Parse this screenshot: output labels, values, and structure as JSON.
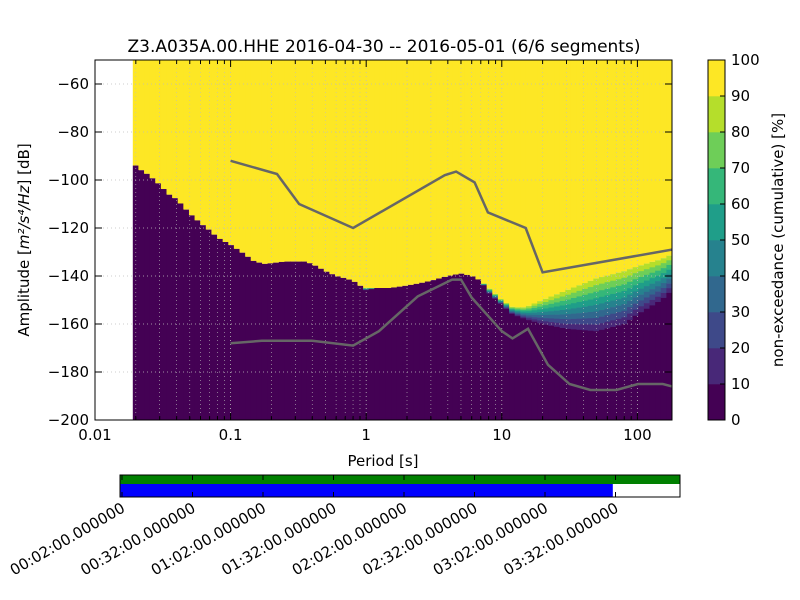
{
  "chart_data": {
    "type": "heatmap",
    "title": "Z3.A035A.00.HHE   2016-04-30 -- 2016-05-01  (6/6 segments)",
    "xlabel": "Period [s]",
    "ylabel_prefix": "Amplitude [",
    "ylabel_math": "m²/s⁴/Hz",
    "ylabel_suffix": "] [dB]",
    "x_scale": "log",
    "xlim": [
      0.01,
      180
    ],
    "ylim": [
      -200,
      -50
    ],
    "grid": true,
    "x_ticks": [
      {
        "value": 0.01,
        "label": "0.01"
      },
      {
        "value": 0.1,
        "label": "0.1"
      },
      {
        "value": 1,
        "label": "1"
      },
      {
        "value": 10,
        "label": "10"
      },
      {
        "value": 100,
        "label": "100"
      }
    ],
    "y_ticks": [
      {
        "value": -60,
        "label": "−60"
      },
      {
        "value": -80,
        "label": "−80"
      },
      {
        "value": -100,
        "label": "−100"
      },
      {
        "value": -120,
        "label": "−120"
      },
      {
        "value": -140,
        "label": "−140"
      },
      {
        "value": -160,
        "label": "−160"
      },
      {
        "value": -180,
        "label": "−180"
      },
      {
        "value": -200,
        "label": "−200"
      }
    ],
    "colorbar": {
      "label": "non-exceedance (cumulative) [%]",
      "range": [
        0,
        100
      ],
      "ticks": [
        {
          "value": 0,
          "label": "0"
        },
        {
          "value": 10,
          "label": "10"
        },
        {
          "value": 20,
          "label": "20"
        },
        {
          "value": 30,
          "label": "30"
        },
        {
          "value": 40,
          "label": "40"
        },
        {
          "value": 50,
          "label": "50"
        },
        {
          "value": 60,
          "label": "60"
        },
        {
          "value": 70,
          "label": "70"
        },
        {
          "value": 80,
          "label": "80"
        },
        {
          "value": 90,
          "label": "90"
        },
        {
          "value": 100,
          "label": "100"
        }
      ],
      "colors": [
        "#440154",
        "#482878",
        "#3e4989",
        "#31688e",
        "#26828e",
        "#1f9e89",
        "#35b779",
        "#6ece58",
        "#b5de2b",
        "#fde725"
      ]
    },
    "data_start_period": 0.019,
    "low_percentile_boundary": [
      [
        0.019,
        -93
      ],
      [
        0.022,
        -96
      ],
      [
        0.025,
        -98
      ],
      [
        0.03,
        -102
      ],
      [
        0.035,
        -106
      ],
      [
        0.04,
        -108
      ],
      [
        0.05,
        -114
      ],
      [
        0.06,
        -118
      ],
      [
        0.07,
        -121
      ],
      [
        0.08,
        -124
      ],
      [
        0.1,
        -127
      ],
      [
        0.12,
        -130
      ],
      [
        0.15,
        -134
      ],
      [
        0.18,
        -135
      ],
      [
        0.25,
        -134
      ],
      [
        0.3,
        -134
      ],
      [
        0.35,
        -134
      ],
      [
        0.4,
        -135
      ],
      [
        0.5,
        -138
      ],
      [
        0.6,
        -140
      ],
      [
        0.7,
        -141
      ],
      [
        0.8,
        -142
      ],
      [
        0.9,
        -144
      ],
      [
        1.0,
        -146
      ],
      [
        1.2,
        -145
      ],
      [
        1.5,
        -145
      ],
      [
        2,
        -144
      ],
      [
        2.5,
        -143
      ],
      [
        3,
        -142
      ],
      [
        4,
        -140
      ],
      [
        5,
        -139
      ],
      [
        6,
        -140
      ],
      [
        7,
        -142
      ],
      [
        8,
        -147
      ],
      [
        10,
        -152
      ],
      [
        12,
        -156
      ],
      [
        15,
        -158
      ],
      [
        20,
        -160
      ],
      [
        30,
        -162
      ],
      [
        50,
        -163
      ],
      [
        80,
        -160
      ],
      [
        100,
        -156
      ],
      [
        150,
        -150
      ],
      [
        180,
        -146
      ]
    ],
    "high_percentile_boundary": [
      [
        0.019,
        -93
      ],
      [
        0.022,
        -96
      ],
      [
        0.025,
        -98
      ],
      [
        0.03,
        -102
      ],
      [
        0.035,
        -106
      ],
      [
        0.04,
        -108
      ],
      [
        0.05,
        -114
      ],
      [
        0.06,
        -118
      ],
      [
        0.07,
        -121
      ],
      [
        0.08,
        -124
      ],
      [
        0.1,
        -127
      ],
      [
        0.12,
        -130
      ],
      [
        0.15,
        -134
      ],
      [
        0.18,
        -135
      ],
      [
        0.25,
        -134
      ],
      [
        0.3,
        -134
      ],
      [
        0.35,
        -134
      ],
      [
        0.4,
        -135
      ],
      [
        0.5,
        -138
      ],
      [
        0.6,
        -140
      ],
      [
        0.7,
        -141
      ],
      [
        0.8,
        -142
      ],
      [
        0.9,
        -144
      ],
      [
        1.0,
        -145
      ],
      [
        1.2,
        -145
      ],
      [
        1.5,
        -145
      ],
      [
        2,
        -144
      ],
      [
        2.5,
        -143
      ],
      [
        3,
        -142
      ],
      [
        4,
        -140
      ],
      [
        5,
        -139
      ],
      [
        6,
        -140
      ],
      [
        7,
        -142
      ],
      [
        8,
        -145
      ],
      [
        10,
        -150
      ],
      [
        12,
        -153
      ],
      [
        15,
        -153
      ],
      [
        20,
        -150
      ],
      [
        30,
        -146
      ],
      [
        50,
        -141
      ],
      [
        80,
        -138
      ],
      [
        100,
        -136
      ],
      [
        150,
        -133
      ],
      [
        180,
        -131
      ]
    ],
    "nhnm": [
      [
        0.1,
        -92
      ],
      [
        0.22,
        -97.5
      ],
      [
        0.32,
        -110
      ],
      [
        0.8,
        -120
      ],
      [
        3.8,
        -98
      ],
      [
        4.6,
        -96.5
      ],
      [
        6.3,
        -101
      ],
      [
        7.9,
        -113.5
      ],
      [
        15,
        -120
      ],
      [
        20,
        -138.5
      ],
      [
        180,
        -129
      ]
    ],
    "nlnm": [
      [
        0.1,
        -168
      ],
      [
        0.17,
        -167
      ],
      [
        0.4,
        -167
      ],
      [
        0.8,
        -169
      ],
      [
        1.24,
        -163
      ],
      [
        2.4,
        -148.5
      ],
      [
        4.3,
        -141.5
      ],
      [
        5.0,
        -141.5
      ],
      [
        6.0,
        -149
      ],
      [
        10,
        -163
      ],
      [
        12,
        -166
      ],
      [
        15.6,
        -162
      ],
      [
        21.9,
        -177
      ],
      [
        31.6,
        -185
      ],
      [
        45,
        -187.5
      ],
      [
        70,
        -187.5
      ],
      [
        101,
        -185
      ],
      [
        154,
        -185
      ],
      [
        180,
        -186
      ]
    ],
    "time_axis": {
      "labels": [
        "00:02:00.000000",
        "00:32:00.000000",
        "01:02:00.000000",
        "01:32:00.000000",
        "02:02:00.000000",
        "02:32:00.000000",
        "03:02:00.000000",
        "03:32:00.000000"
      ],
      "data_coverage": [
        0,
        1
      ],
      "processed_coverage": [
        0,
        0.88
      ]
    }
  }
}
